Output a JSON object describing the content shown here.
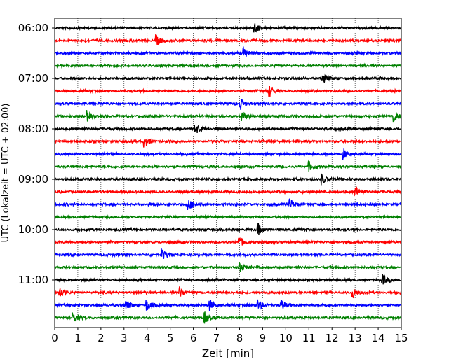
{
  "chart_data": {
    "type": "line",
    "title": "",
    "xlabel": "Zeit  [min]",
    "ylabel": "UTC (Lokalzeit = UTC + 02:00)",
    "xlim": [
      0,
      15
    ],
    "x_ticks": [
      0,
      1,
      2,
      3,
      4,
      5,
      6,
      7,
      8,
      9,
      10,
      11,
      12,
      13,
      14,
      15
    ],
    "y_ticks": [
      "06:00",
      "07:00",
      "08:00",
      "09:00",
      "10:00",
      "11:00"
    ],
    "trace_interval_min": 15,
    "grid": "vertical-dotted",
    "legend": "none",
    "color_cycle": [
      "#000000",
      "#ff0000",
      "#0000ff",
      "#008000"
    ],
    "traces": [
      {
        "start": "06:00",
        "color": "#000000",
        "events": [
          8.65
        ]
      },
      {
        "start": "06:15",
        "color": "#ff0000",
        "events": [
          4.4
        ]
      },
      {
        "start": "06:30",
        "color": "#0000ff",
        "events": [
          8.2
        ]
      },
      {
        "start": "06:45",
        "color": "#008000",
        "events": []
      },
      {
        "start": "07:00",
        "color": "#000000",
        "events": [
          11.6
        ]
      },
      {
        "start": "07:15",
        "color": "#ff0000",
        "events": [
          9.3
        ]
      },
      {
        "start": "07:30",
        "color": "#0000ff",
        "events": [
          8.05
        ]
      },
      {
        "start": "07:45",
        "color": "#008000",
        "events": [
          1.4,
          8.1,
          14.7
        ]
      },
      {
        "start": "08:00",
        "color": "#000000",
        "events": [
          6.1
        ]
      },
      {
        "start": "08:15",
        "color": "#ff0000",
        "events": [
          3.9
        ]
      },
      {
        "start": "08:30",
        "color": "#0000ff",
        "events": [
          12.5
        ]
      },
      {
        "start": "08:45",
        "color": "#008000",
        "events": [
          11.0
        ]
      },
      {
        "start": "09:00",
        "color": "#000000",
        "events": [
          11.55
        ]
      },
      {
        "start": "09:15",
        "color": "#ff0000",
        "events": [
          13.0
        ]
      },
      {
        "start": "09:30",
        "color": "#0000ff",
        "events": [
          5.8,
          10.2
        ]
      },
      {
        "start": "09:45",
        "color": "#008000",
        "events": []
      },
      {
        "start": "10:00",
        "color": "#000000",
        "events": [
          8.8
        ]
      },
      {
        "start": "10:15",
        "color": "#ff0000",
        "events": [
          8.0
        ]
      },
      {
        "start": "10:30",
        "color": "#0000ff",
        "events": [
          4.65
        ]
      },
      {
        "start": "10:45",
        "color": "#008000",
        "events": [
          8.0
        ]
      },
      {
        "start": "11:00",
        "color": "#000000",
        "events": [
          14.2
        ]
      },
      {
        "start": "11:15",
        "color": "#ff0000",
        "events": [
          0.2,
          5.4,
          12.9
        ]
      },
      {
        "start": "11:30",
        "color": "#0000ff",
        "events": [
          3.1,
          4.0,
          6.7,
          8.8,
          9.8
        ]
      },
      {
        "start": "11:45",
        "color": "#008000",
        "events": [
          0.8,
          6.5
        ]
      }
    ]
  }
}
